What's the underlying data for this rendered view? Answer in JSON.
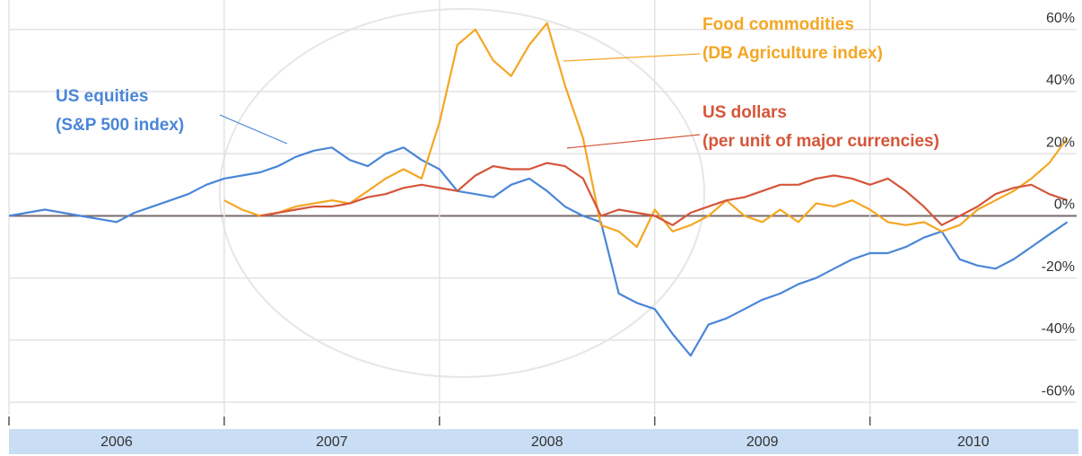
{
  "chart_data": {
    "type": "line",
    "x": [
      2006,
      2006.083,
      2006.167,
      2006.25,
      2006.333,
      2006.417,
      2006.5,
      2006.583,
      2006.667,
      2006.75,
      2006.833,
      2006.917,
      2007,
      2007.083,
      2007.167,
      2007.25,
      2007.333,
      2007.417,
      2007.5,
      2007.583,
      2007.667,
      2007.75,
      2007.833,
      2007.917,
      2008,
      2008.083,
      2008.167,
      2008.25,
      2008.333,
      2008.417,
      2008.5,
      2008.583,
      2008.667,
      2008.75,
      2008.833,
      2008.917,
      2009,
      2009.083,
      2009.167,
      2009.25,
      2009.333,
      2009.417,
      2009.5,
      2009.583,
      2009.667,
      2009.75,
      2009.833,
      2009.917,
      2010,
      2010.083,
      2010.167,
      2010.25,
      2010.333,
      2010.417,
      2010.5,
      2010.583,
      2010.667,
      2010.75,
      2010.833,
      2010.917
    ],
    "series": [
      {
        "name": "US equities",
        "note": "(S&P 500 index)",
        "color": "#4a86d8",
        "values": [
          0,
          1,
          2,
          1,
          0,
          -1,
          -2,
          1,
          3,
          5,
          7,
          10,
          12,
          13,
          14,
          16,
          19,
          21,
          22,
          18,
          16,
          20,
          22,
          18,
          15,
          8,
          7,
          6,
          10,
          12,
          8,
          3,
          0,
          -2,
          -25,
          -28,
          -30,
          -38,
          -45,
          -35,
          -33,
          -30,
          -27,
          -25,
          -22,
          -20,
          -17,
          -14,
          -12,
          -12,
          -10,
          -7,
          -5,
          -14,
          -16,
          -17,
          -14,
          -10,
          -6,
          -2
        ]
      },
      {
        "name": "Food commodities",
        "note": "(DB Agriculture index)",
        "color": "#f5a623",
        "values": [
          null,
          null,
          null,
          null,
          null,
          null,
          null,
          null,
          null,
          null,
          null,
          null,
          5,
          2,
          0,
          1,
          3,
          4,
          5,
          4,
          8,
          12,
          15,
          12,
          30,
          55,
          60,
          50,
          45,
          55,
          62,
          42,
          25,
          -3,
          -5,
          -10,
          2,
          -5,
          -3,
          0,
          5,
          0,
          -2,
          2,
          -2,
          4,
          3,
          5,
          2,
          -2,
          -3,
          -2,
          -5,
          -3,
          2,
          5,
          8,
          12,
          17,
          25
        ]
      },
      {
        "name": "US dollars",
        "note": "(per unit of major currencies)",
        "color": "#d6553a",
        "values": [
          null,
          null,
          null,
          null,
          null,
          null,
          null,
          null,
          null,
          null,
          null,
          null,
          null,
          null,
          0,
          1,
          2,
          3,
          3,
          4,
          6,
          7,
          9,
          10,
          9,
          8,
          13,
          16,
          15,
          15,
          17,
          16,
          12,
          0,
          2,
          1,
          0,
          -3,
          1,
          3,
          5,
          6,
          8,
          10,
          10,
          12,
          13,
          12,
          10,
          12,
          8,
          3,
          -3,
          0,
          3,
          7,
          9,
          10,
          7,
          5
        ]
      }
    ],
    "xlim": [
      2006,
      2010.96
    ],
    "xticks": [
      2006,
      2007,
      2008,
      2009,
      2010
    ],
    "ylim": [
      -64,
      66
    ],
    "yticks": [
      {
        "value": 60,
        "label": "60%"
      },
      {
        "value": 40,
        "label": "40%"
      },
      {
        "value": 20,
        "label": "20%"
      },
      {
        "value": 0,
        "label": "0%"
      },
      {
        "value": -20,
        "label": "-20%"
      },
      {
        "value": -40,
        "label": "-40%"
      },
      {
        "value": -60,
        "label": "-60%"
      }
    ],
    "grid": true
  }
}
